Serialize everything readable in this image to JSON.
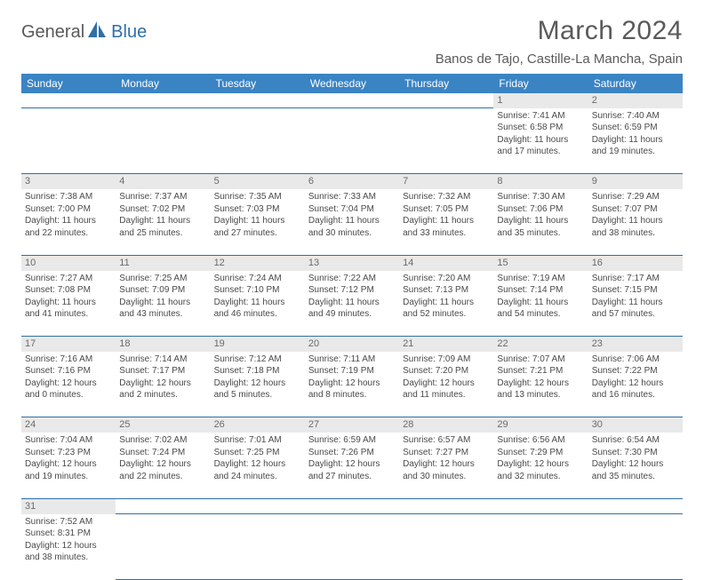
{
  "brand": {
    "part1": "General",
    "part2": "Blue"
  },
  "title": "March 2024",
  "location": "Banos de Tajo, Castille-La Mancha, Spain",
  "colors": {
    "header_bg": "#3b84c4",
    "header_text": "#ffffff",
    "daynum_bg": "#e9e9e9",
    "border": "#2f6fa7",
    "text": "#4a4a4a",
    "brand_gray": "#58595b",
    "brand_blue": "#2f6fa7"
  },
  "weekdays": [
    "Sunday",
    "Monday",
    "Tuesday",
    "Wednesday",
    "Thursday",
    "Friday",
    "Saturday"
  ],
  "weeks": [
    [
      null,
      null,
      null,
      null,
      null,
      {
        "n": "1",
        "sunrise": "Sunrise: 7:41 AM",
        "sunset": "Sunset: 6:58 PM",
        "day1": "Daylight: 11 hours",
        "day2": "and 17 minutes."
      },
      {
        "n": "2",
        "sunrise": "Sunrise: 7:40 AM",
        "sunset": "Sunset: 6:59 PM",
        "day1": "Daylight: 11 hours",
        "day2": "and 19 minutes."
      }
    ],
    [
      {
        "n": "3",
        "sunrise": "Sunrise: 7:38 AM",
        "sunset": "Sunset: 7:00 PM",
        "day1": "Daylight: 11 hours",
        "day2": "and 22 minutes."
      },
      {
        "n": "4",
        "sunrise": "Sunrise: 7:37 AM",
        "sunset": "Sunset: 7:02 PM",
        "day1": "Daylight: 11 hours",
        "day2": "and 25 minutes."
      },
      {
        "n": "5",
        "sunrise": "Sunrise: 7:35 AM",
        "sunset": "Sunset: 7:03 PM",
        "day1": "Daylight: 11 hours",
        "day2": "and 27 minutes."
      },
      {
        "n": "6",
        "sunrise": "Sunrise: 7:33 AM",
        "sunset": "Sunset: 7:04 PM",
        "day1": "Daylight: 11 hours",
        "day2": "and 30 minutes."
      },
      {
        "n": "7",
        "sunrise": "Sunrise: 7:32 AM",
        "sunset": "Sunset: 7:05 PM",
        "day1": "Daylight: 11 hours",
        "day2": "and 33 minutes."
      },
      {
        "n": "8",
        "sunrise": "Sunrise: 7:30 AM",
        "sunset": "Sunset: 7:06 PM",
        "day1": "Daylight: 11 hours",
        "day2": "and 35 minutes."
      },
      {
        "n": "9",
        "sunrise": "Sunrise: 7:29 AM",
        "sunset": "Sunset: 7:07 PM",
        "day1": "Daylight: 11 hours",
        "day2": "and 38 minutes."
      }
    ],
    [
      {
        "n": "10",
        "sunrise": "Sunrise: 7:27 AM",
        "sunset": "Sunset: 7:08 PM",
        "day1": "Daylight: 11 hours",
        "day2": "and 41 minutes."
      },
      {
        "n": "11",
        "sunrise": "Sunrise: 7:25 AM",
        "sunset": "Sunset: 7:09 PM",
        "day1": "Daylight: 11 hours",
        "day2": "and 43 minutes."
      },
      {
        "n": "12",
        "sunrise": "Sunrise: 7:24 AM",
        "sunset": "Sunset: 7:10 PM",
        "day1": "Daylight: 11 hours",
        "day2": "and 46 minutes."
      },
      {
        "n": "13",
        "sunrise": "Sunrise: 7:22 AM",
        "sunset": "Sunset: 7:12 PM",
        "day1": "Daylight: 11 hours",
        "day2": "and 49 minutes."
      },
      {
        "n": "14",
        "sunrise": "Sunrise: 7:20 AM",
        "sunset": "Sunset: 7:13 PM",
        "day1": "Daylight: 11 hours",
        "day2": "and 52 minutes."
      },
      {
        "n": "15",
        "sunrise": "Sunrise: 7:19 AM",
        "sunset": "Sunset: 7:14 PM",
        "day1": "Daylight: 11 hours",
        "day2": "and 54 minutes."
      },
      {
        "n": "16",
        "sunrise": "Sunrise: 7:17 AM",
        "sunset": "Sunset: 7:15 PM",
        "day1": "Daylight: 11 hours",
        "day2": "and 57 minutes."
      }
    ],
    [
      {
        "n": "17",
        "sunrise": "Sunrise: 7:16 AM",
        "sunset": "Sunset: 7:16 PM",
        "day1": "Daylight: 12 hours",
        "day2": "and 0 minutes."
      },
      {
        "n": "18",
        "sunrise": "Sunrise: 7:14 AM",
        "sunset": "Sunset: 7:17 PM",
        "day1": "Daylight: 12 hours",
        "day2": "and 2 minutes."
      },
      {
        "n": "19",
        "sunrise": "Sunrise: 7:12 AM",
        "sunset": "Sunset: 7:18 PM",
        "day1": "Daylight: 12 hours",
        "day2": "and 5 minutes."
      },
      {
        "n": "20",
        "sunrise": "Sunrise: 7:11 AM",
        "sunset": "Sunset: 7:19 PM",
        "day1": "Daylight: 12 hours",
        "day2": "and 8 minutes."
      },
      {
        "n": "21",
        "sunrise": "Sunrise: 7:09 AM",
        "sunset": "Sunset: 7:20 PM",
        "day1": "Daylight: 12 hours",
        "day2": "and 11 minutes."
      },
      {
        "n": "22",
        "sunrise": "Sunrise: 7:07 AM",
        "sunset": "Sunset: 7:21 PM",
        "day1": "Daylight: 12 hours",
        "day2": "and 13 minutes."
      },
      {
        "n": "23",
        "sunrise": "Sunrise: 7:06 AM",
        "sunset": "Sunset: 7:22 PM",
        "day1": "Daylight: 12 hours",
        "day2": "and 16 minutes."
      }
    ],
    [
      {
        "n": "24",
        "sunrise": "Sunrise: 7:04 AM",
        "sunset": "Sunset: 7:23 PM",
        "day1": "Daylight: 12 hours",
        "day2": "and 19 minutes."
      },
      {
        "n": "25",
        "sunrise": "Sunrise: 7:02 AM",
        "sunset": "Sunset: 7:24 PM",
        "day1": "Daylight: 12 hours",
        "day2": "and 22 minutes."
      },
      {
        "n": "26",
        "sunrise": "Sunrise: 7:01 AM",
        "sunset": "Sunset: 7:25 PM",
        "day1": "Daylight: 12 hours",
        "day2": "and 24 minutes."
      },
      {
        "n": "27",
        "sunrise": "Sunrise: 6:59 AM",
        "sunset": "Sunset: 7:26 PM",
        "day1": "Daylight: 12 hours",
        "day2": "and 27 minutes."
      },
      {
        "n": "28",
        "sunrise": "Sunrise: 6:57 AM",
        "sunset": "Sunset: 7:27 PM",
        "day1": "Daylight: 12 hours",
        "day2": "and 30 minutes."
      },
      {
        "n": "29",
        "sunrise": "Sunrise: 6:56 AM",
        "sunset": "Sunset: 7:29 PM",
        "day1": "Daylight: 12 hours",
        "day2": "and 32 minutes."
      },
      {
        "n": "30",
        "sunrise": "Sunrise: 6:54 AM",
        "sunset": "Sunset: 7:30 PM",
        "day1": "Daylight: 12 hours",
        "day2": "and 35 minutes."
      }
    ],
    [
      {
        "n": "31",
        "sunrise": "Sunrise: 7:52 AM",
        "sunset": "Sunset: 8:31 PM",
        "day1": "Daylight: 12 hours",
        "day2": "and 38 minutes."
      },
      null,
      null,
      null,
      null,
      null,
      null
    ]
  ]
}
